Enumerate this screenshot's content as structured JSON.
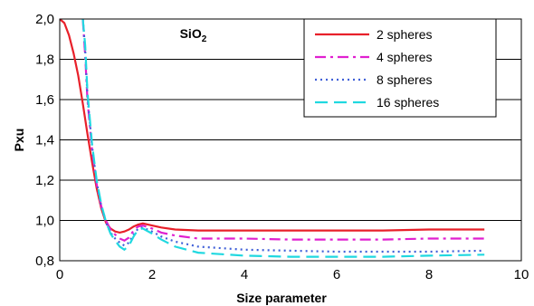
{
  "chart_data": {
    "type": "line",
    "annotation": {
      "main": "SiO",
      "sub": "2"
    },
    "xlabel": "Size parameter",
    "ylabel": "Pxu",
    "xlim": [
      0,
      10
    ],
    "ylim": [
      0.8,
      2.0
    ],
    "xticks": [
      0,
      2,
      4,
      6,
      8,
      10
    ],
    "xtick_labels": [
      "0",
      "2",
      "4",
      "6",
      "8",
      "10"
    ],
    "yticks": [
      0.8,
      1.0,
      1.2,
      1.4,
      1.6,
      1.8,
      2.0
    ],
    "ytick_labels": [
      "0,8",
      "1,0",
      "1,2",
      "1,4",
      "1,6",
      "1,8",
      "2,0"
    ],
    "grid": "horizontal",
    "legend_position": "top-right",
    "series": [
      {
        "name": "2 spheres",
        "color": "#e8202a",
        "dash": "solid",
        "x": [
          0.0,
          0.1,
          0.2,
          0.3,
          0.4,
          0.5,
          0.6,
          0.7,
          0.8,
          0.9,
          1.0,
          1.1,
          1.2,
          1.3,
          1.4,
          1.5,
          1.6,
          1.7,
          1.8,
          2.0,
          2.2,
          2.5,
          3.0,
          4.0,
          5.0,
          6.0,
          7.0,
          8.0,
          9.2
        ],
        "y": [
          2.0,
          1.98,
          1.92,
          1.83,
          1.72,
          1.58,
          1.43,
          1.29,
          1.16,
          1.06,
          0.99,
          0.96,
          0.945,
          0.94,
          0.945,
          0.955,
          0.97,
          0.98,
          0.985,
          0.975,
          0.965,
          0.955,
          0.95,
          0.95,
          0.95,
          0.95,
          0.95,
          0.955,
          0.955
        ]
      },
      {
        "name": "4 spheres",
        "color": "#e020d0",
        "dash": "dashdot",
        "x": [
          0.5,
          0.55,
          0.6,
          0.7,
          0.8,
          0.9,
          1.0,
          1.1,
          1.2,
          1.3,
          1.4,
          1.5,
          1.6,
          1.7,
          1.8,
          2.0,
          2.2,
          2.5,
          3.0,
          4.0,
          5.0,
          6.0,
          7.0,
          8.0,
          9.2
        ],
        "y": [
          2.0,
          1.82,
          1.6,
          1.35,
          1.18,
          1.07,
          1.0,
          0.955,
          0.93,
          0.91,
          0.9,
          0.915,
          0.95,
          0.97,
          0.975,
          0.96,
          0.94,
          0.925,
          0.91,
          0.91,
          0.905,
          0.905,
          0.905,
          0.91,
          0.91
        ]
      },
      {
        "name": "8 spheres",
        "color": "#4060d8",
        "dash": "dotted",
        "x": [
          0.5,
          0.55,
          0.6,
          0.7,
          0.8,
          0.9,
          1.0,
          1.1,
          1.2,
          1.3,
          1.4,
          1.5,
          1.6,
          1.7,
          1.8,
          2.0,
          2.2,
          2.5,
          3.0,
          4.0,
          5.0,
          6.0,
          7.0,
          8.0,
          9.2
        ],
        "y": [
          2.0,
          1.85,
          1.62,
          1.37,
          1.19,
          1.07,
          0.99,
          0.94,
          0.91,
          0.89,
          0.875,
          0.89,
          0.93,
          0.96,
          0.965,
          0.945,
          0.92,
          0.895,
          0.87,
          0.855,
          0.85,
          0.845,
          0.845,
          0.845,
          0.85
        ]
      },
      {
        "name": "16 spheres",
        "color": "#20d8e0",
        "dash": "dashed",
        "x": [
          0.5,
          0.55,
          0.6,
          0.7,
          0.8,
          0.9,
          1.0,
          1.1,
          1.2,
          1.3,
          1.4,
          1.5,
          1.6,
          1.7,
          1.8,
          2.0,
          2.2,
          2.5,
          3.0,
          4.0,
          5.0,
          6.0,
          7.0,
          8.0,
          9.2
        ],
        "y": [
          2.0,
          1.87,
          1.64,
          1.38,
          1.2,
          1.08,
          0.995,
          0.935,
          0.9,
          0.87,
          0.855,
          0.875,
          0.92,
          0.955,
          0.96,
          0.935,
          0.905,
          0.87,
          0.84,
          0.825,
          0.82,
          0.82,
          0.82,
          0.825,
          0.83
        ]
      }
    ]
  }
}
